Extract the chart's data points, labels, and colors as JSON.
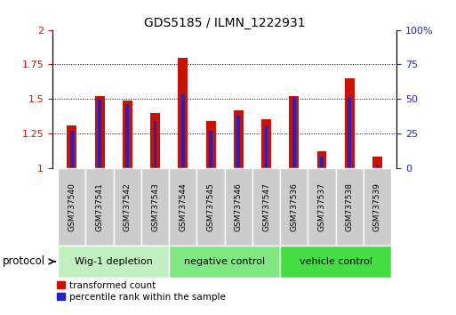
{
  "title": "GDS5185 / ILMN_1222931",
  "samples": [
    "GSM737540",
    "GSM737541",
    "GSM737542",
    "GSM737543",
    "GSM737544",
    "GSM737545",
    "GSM737546",
    "GSM737547",
    "GSM737536",
    "GSM737537",
    "GSM737538",
    "GSM737539"
  ],
  "transformed_count": [
    1.31,
    1.52,
    1.49,
    1.4,
    1.8,
    1.34,
    1.42,
    1.35,
    1.52,
    1.12,
    1.65,
    1.08
  ],
  "percentile_rank_pct": [
    27,
    50,
    46,
    34,
    53,
    27,
    38,
    30,
    51,
    8,
    51,
    2
  ],
  "proto_groups": [
    {
      "label": "Wig-1 depletion",
      "xstart": -0.5,
      "xend": 3.5,
      "color": "#c0f0c0"
    },
    {
      "label": "negative control",
      "xstart": 3.5,
      "xend": 7.5,
      "color": "#80e880"
    },
    {
      "label": "vehicle control",
      "xstart": 7.5,
      "xend": 11.5,
      "color": "#44dd44"
    }
  ],
  "bar_color_red": "#cc1100",
  "bar_color_blue": "#2222cc",
  "ylim_left": [
    1.0,
    2.0
  ],
  "ylim_right": [
    0,
    100
  ],
  "yticks_left": [
    1.0,
    1.25,
    1.5,
    1.75,
    2.0
  ],
  "yticks_right": [
    0,
    25,
    50,
    75,
    100
  ],
  "ytick_labels_left": [
    "1",
    "1.25",
    "1.5",
    "1.75",
    "2"
  ],
  "ytick_labels_right": [
    "0",
    "25",
    "50",
    "75",
    "100%"
  ],
  "ylabel_left_color": "#cc1100",
  "ylabel_right_color": "#2222cc",
  "protocol_label": "protocol",
  "legend_red": "transformed count",
  "legend_blue": "percentile rank within the sample",
  "sample_box_color": "#cccccc",
  "bar_width": 0.35,
  "blue_bar_width": 0.12
}
